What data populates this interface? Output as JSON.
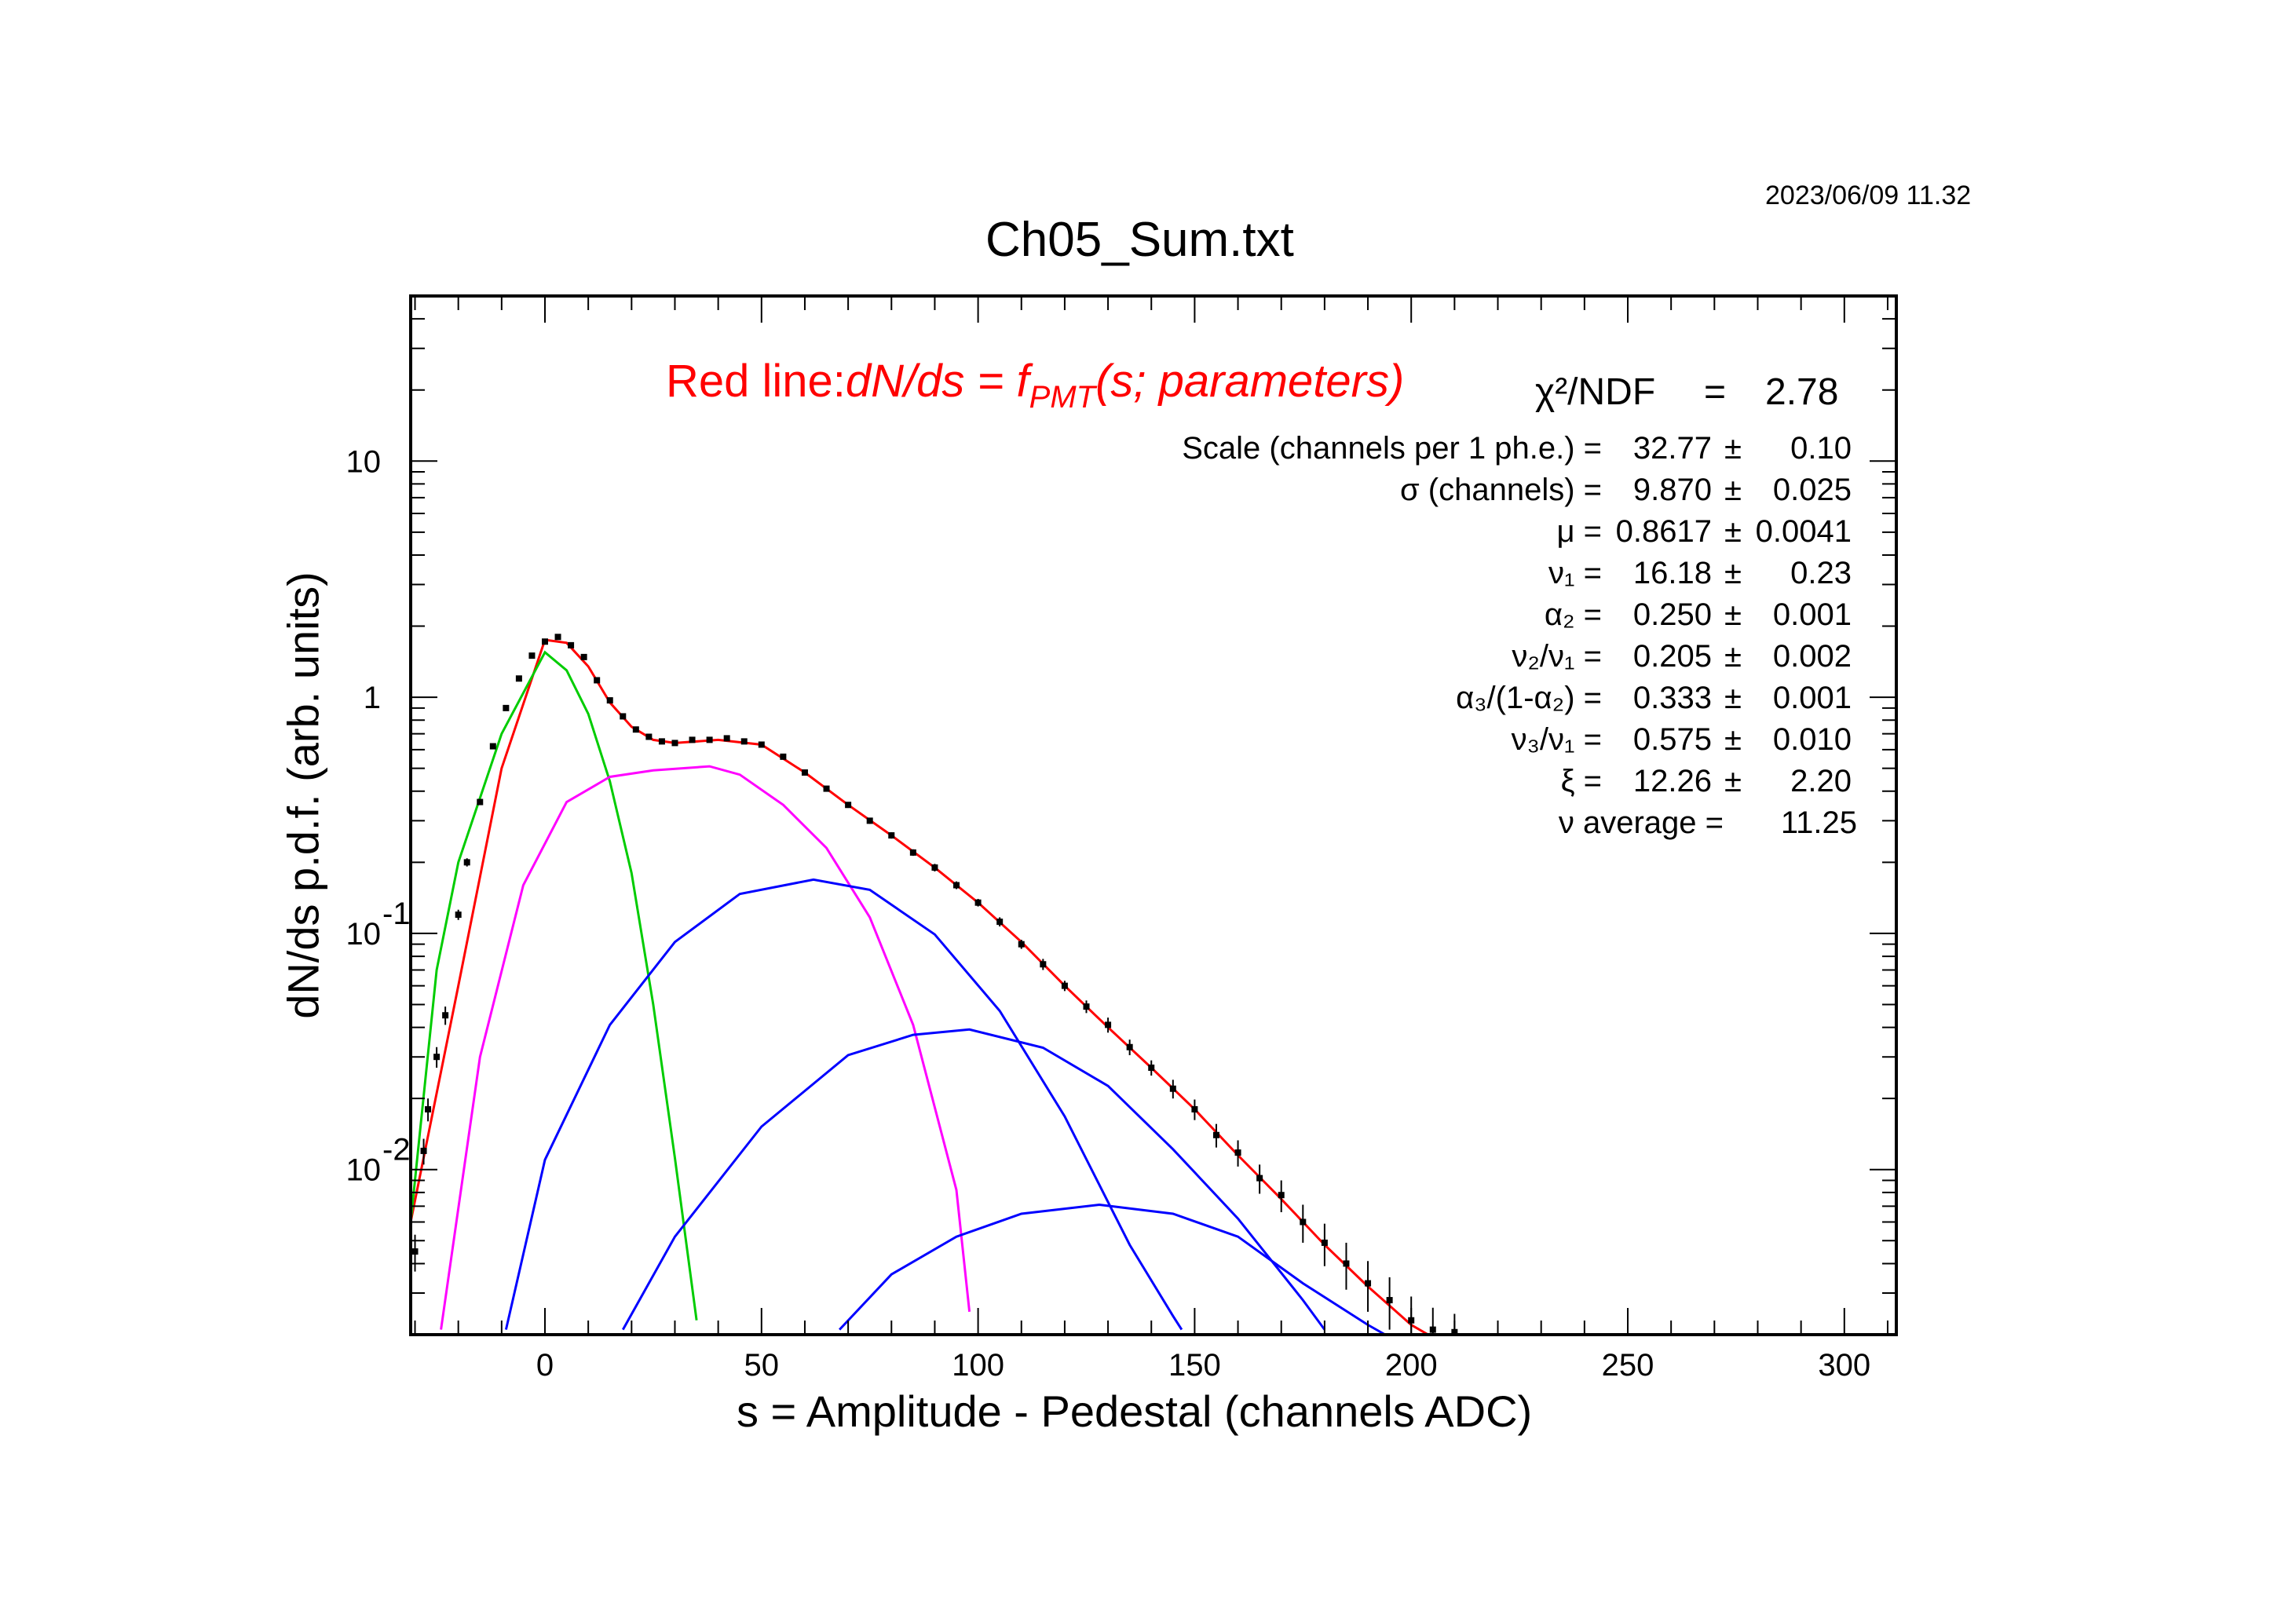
{
  "timestamp": "2023/06/09   11.32",
  "chart_data": {
    "type": "scatter",
    "title": "Ch05_Sum.txt",
    "xlabel": "s = Amplitude - Pedestal (channels ADC)",
    "ylabel": "dN/ds p.d.f. (arb. units)",
    "xlim": [
      -31,
      312
    ],
    "ylim": [
      0.002,
      50
    ],
    "yscale": "log",
    "x_ticks": [
      0,
      50,
      100,
      150,
      200,
      250,
      300
    ],
    "y_ticks": [
      {
        "value": 10,
        "base": "10",
        "exp": ""
      },
      {
        "value": 1,
        "base": "1",
        "exp": ""
      },
      {
        "value": 0.1,
        "base": "10",
        "exp": "-1"
      },
      {
        "value": 0.01,
        "base": "10",
        "exp": "-2"
      }
    ],
    "legend": {
      "prefix": "Red line:",
      "formula": "dN/ds = f",
      "sub": "PMT",
      "suffix": "(s; parameters)",
      "chi2_label": "χ²/NDF",
      "chi2_eq": "=",
      "chi2_value": "2.78"
    },
    "parameters": [
      {
        "name": "Scale (channels per 1 ph.e.) =",
        "value": "32.77",
        "pm": "±",
        "error": "0.10"
      },
      {
        "name": "σ (channels) =",
        "value": "9.870",
        "pm": "±",
        "error": "0.025"
      },
      {
        "name": "μ =",
        "value": "0.8617",
        "pm": "±",
        "error": "0.0041"
      },
      {
        "name": "ν₁ =",
        "value": "16.18",
        "pm": "±",
        "error": "0.23"
      },
      {
        "name": "α₂ =",
        "value": "0.250",
        "pm": "±",
        "error": "0.001"
      },
      {
        "name": "ν₂/ν₁ =",
        "value": "0.205",
        "pm": "±",
        "error": "0.002"
      },
      {
        "name": "α₃/(1-α₂) =",
        "value": "0.333",
        "pm": "±",
        "error": "0.001"
      },
      {
        "name": "ν₃/ν₁ =",
        "value": "0.575",
        "pm": "±",
        "error": "0.010"
      },
      {
        "name": "ξ =",
        "value": "12.26",
        "pm": "±",
        "error": "2.20"
      },
      {
        "name": "ν average =",
        "value": "11.25",
        "pm": "",
        "error": ""
      }
    ],
    "curves": [
      {
        "color": "#ff0000",
        "points": [
          [
            -31,
            0.006
          ],
          [
            -20,
            0.06
          ],
          [
            -10,
            0.5
          ],
          [
            0,
            1.75
          ],
          [
            5,
            1.7
          ],
          [
            10,
            1.35
          ],
          [
            15,
            0.95
          ],
          [
            20,
            0.75
          ],
          [
            25,
            0.66
          ],
          [
            30,
            0.64
          ],
          [
            40,
            0.66
          ],
          [
            50,
            0.63
          ],
          [
            60,
            0.48
          ],
          [
            70,
            0.35
          ],
          [
            80,
            0.26
          ],
          [
            90,
            0.19
          ],
          [
            100,
            0.135
          ],
          [
            110,
            0.092
          ],
          [
            120,
            0.06
          ],
          [
            130,
            0.04
          ],
          [
            140,
            0.027
          ],
          [
            150,
            0.018
          ],
          [
            160,
            0.0115
          ],
          [
            170,
            0.0075
          ],
          [
            180,
            0.0048
          ],
          [
            190,
            0.0032
          ],
          [
            200,
            0.0022
          ],
          [
            206,
            0.0019
          ]
        ]
      },
      {
        "color": "#00cc00",
        "points": [
          [
            -31,
            0.006
          ],
          [
            -25,
            0.07
          ],
          [
            -20,
            0.2
          ],
          [
            -10,
            0.7
          ],
          [
            0,
            1.55
          ],
          [
            5,
            1.3
          ],
          [
            10,
            0.85
          ],
          [
            15,
            0.44
          ],
          [
            20,
            0.18
          ],
          [
            25,
            0.05
          ],
          [
            30,
            0.0112
          ],
          [
            35,
            0.0023
          ]
        ]
      },
      {
        "color": "#ff00ff",
        "points": [
          [
            -24,
            0.0021
          ],
          [
            -15,
            0.03
          ],
          [
            -5,
            0.16
          ],
          [
            5,
            0.36
          ],
          [
            15,
            0.46
          ],
          [
            25,
            0.49
          ],
          [
            38,
            0.51
          ],
          [
            45,
            0.47
          ],
          [
            55,
            0.35
          ],
          [
            65,
            0.23
          ],
          [
            75,
            0.117
          ],
          [
            85,
            0.041
          ],
          [
            95,
            0.0082
          ],
          [
            98,
            0.0025
          ]
        ]
      },
      {
        "color": "#0000ff",
        "points": [
          [
            -9,
            0.0021
          ],
          [
            0,
            0.011
          ],
          [
            15,
            0.041
          ],
          [
            30,
            0.092
          ],
          [
            45,
            0.147
          ],
          [
            62,
            0.169
          ],
          [
            75,
            0.153
          ],
          [
            90,
            0.099
          ],
          [
            105,
            0.047
          ],
          [
            120,
            0.0168
          ],
          [
            135,
            0.0048
          ],
          [
            145,
            0.0024
          ],
          [
            147,
            0.0021
          ]
        ]
      },
      {
        "color": "#0000ff",
        "points": [
          [
            18,
            0.0021
          ],
          [
            30,
            0.0052
          ],
          [
            50,
            0.0152
          ],
          [
            70,
            0.0305
          ],
          [
            85,
            0.0372
          ],
          [
            98,
            0.0392
          ],
          [
            115,
            0.0328
          ],
          [
            130,
            0.0226
          ],
          [
            145,
            0.0122
          ],
          [
            160,
            0.0062
          ],
          [
            175,
            0.0028
          ],
          [
            180,
            0.0021
          ]
        ]
      },
      {
        "color": "#0000ff",
        "points": [
          [
            68,
            0.0021
          ],
          [
            80,
            0.0036
          ],
          [
            95,
            0.0052
          ],
          [
            110,
            0.0065
          ],
          [
            128,
            0.0071
          ],
          [
            145,
            0.0065
          ],
          [
            160,
            0.0052
          ],
          [
            175,
            0.0033
          ],
          [
            190,
            0.0022
          ],
          [
            194,
            0.002
          ]
        ]
      }
    ],
    "data_points": [
      {
        "x": -30,
        "y": 0.0045,
        "err": 0.0008
      },
      {
        "x": -28,
        "y": 0.012,
        "err": 0.0015
      },
      {
        "x": -27,
        "y": 0.018,
        "err": 0.002
      },
      {
        "x": -25,
        "y": 0.03,
        "err": 0.003
      },
      {
        "x": -23,
        "y": 0.045,
        "err": 0.004
      },
      {
        "x": -20,
        "y": 0.12,
        "err": 0.006
      },
      {
        "x": -18,
        "y": 0.2,
        "err": 0.008
      },
      {
        "x": -15,
        "y": 0.36,
        "err": 0.01
      },
      {
        "x": -12,
        "y": 0.62,
        "err": 0.015
      },
      {
        "x": -9,
        "y": 0.9,
        "err": 0.02
      },
      {
        "x": -6,
        "y": 1.2,
        "err": 0.02
      },
      {
        "x": -3,
        "y": 1.5,
        "err": 0.02
      },
      {
        "x": 0,
        "y": 1.72,
        "err": 0.02
      },
      {
        "x": 3,
        "y": 1.8,
        "err": 0.02
      },
      {
        "x": 6,
        "y": 1.66,
        "err": 0.02
      },
      {
        "x": 9,
        "y": 1.48,
        "err": 0.02
      },
      {
        "x": 12,
        "y": 1.18,
        "err": 0.02
      },
      {
        "x": 15,
        "y": 0.97,
        "err": 0.015
      },
      {
        "x": 18,
        "y": 0.83,
        "err": 0.015
      },
      {
        "x": 21,
        "y": 0.73,
        "err": 0.015
      },
      {
        "x": 24,
        "y": 0.68,
        "err": 0.015
      },
      {
        "x": 27,
        "y": 0.65,
        "err": 0.015
      },
      {
        "x": 30,
        "y": 0.64,
        "err": 0.015
      },
      {
        "x": 34,
        "y": 0.66,
        "err": 0.015
      },
      {
        "x": 38,
        "y": 0.66,
        "err": 0.015
      },
      {
        "x": 42,
        "y": 0.67,
        "err": 0.015
      },
      {
        "x": 46,
        "y": 0.65,
        "err": 0.015
      },
      {
        "x": 50,
        "y": 0.63,
        "err": 0.015
      },
      {
        "x": 55,
        "y": 0.56,
        "err": 0.012
      },
      {
        "x": 60,
        "y": 0.48,
        "err": 0.012
      },
      {
        "x": 65,
        "y": 0.41,
        "err": 0.01
      },
      {
        "x": 70,
        "y": 0.35,
        "err": 0.01
      },
      {
        "x": 75,
        "y": 0.3,
        "err": 0.009
      },
      {
        "x": 80,
        "y": 0.26,
        "err": 0.008
      },
      {
        "x": 85,
        "y": 0.22,
        "err": 0.007
      },
      {
        "x": 90,
        "y": 0.19,
        "err": 0.007
      },
      {
        "x": 95,
        "y": 0.16,
        "err": 0.006
      },
      {
        "x": 100,
        "y": 0.135,
        "err": 0.005
      },
      {
        "x": 105,
        "y": 0.112,
        "err": 0.005
      },
      {
        "x": 110,
        "y": 0.09,
        "err": 0.004
      },
      {
        "x": 115,
        "y": 0.074,
        "err": 0.004
      },
      {
        "x": 120,
        "y": 0.06,
        "err": 0.003
      },
      {
        "x": 125,
        "y": 0.049,
        "err": 0.003
      },
      {
        "x": 130,
        "y": 0.041,
        "err": 0.003
      },
      {
        "x": 135,
        "y": 0.033,
        "err": 0.0025
      },
      {
        "x": 140,
        "y": 0.027,
        "err": 0.002
      },
      {
        "x": 145,
        "y": 0.022,
        "err": 0.002
      },
      {
        "x": 150,
        "y": 0.018,
        "err": 0.0018
      },
      {
        "x": 155,
        "y": 0.014,
        "err": 0.0016
      },
      {
        "x": 160,
        "y": 0.0118,
        "err": 0.0015
      },
      {
        "x": 165,
        "y": 0.0092,
        "err": 0.0013
      },
      {
        "x": 170,
        "y": 0.0078,
        "err": 0.0012
      },
      {
        "x": 175,
        "y": 0.006,
        "err": 0.0011
      },
      {
        "x": 180,
        "y": 0.0049,
        "err": 0.001
      },
      {
        "x": 185,
        "y": 0.004,
        "err": 0.0009
      },
      {
        "x": 190,
        "y": 0.0033,
        "err": 0.0008
      },
      {
        "x": 195,
        "y": 0.0028,
        "err": 0.0007
      },
      {
        "x": 200,
        "y": 0.0023,
        "err": 0.0006
      },
      {
        "x": 205,
        "y": 0.0021,
        "err": 0.0005
      },
      {
        "x": 210,
        "y": 0.00205,
        "err": 0.0004
      }
    ]
  }
}
